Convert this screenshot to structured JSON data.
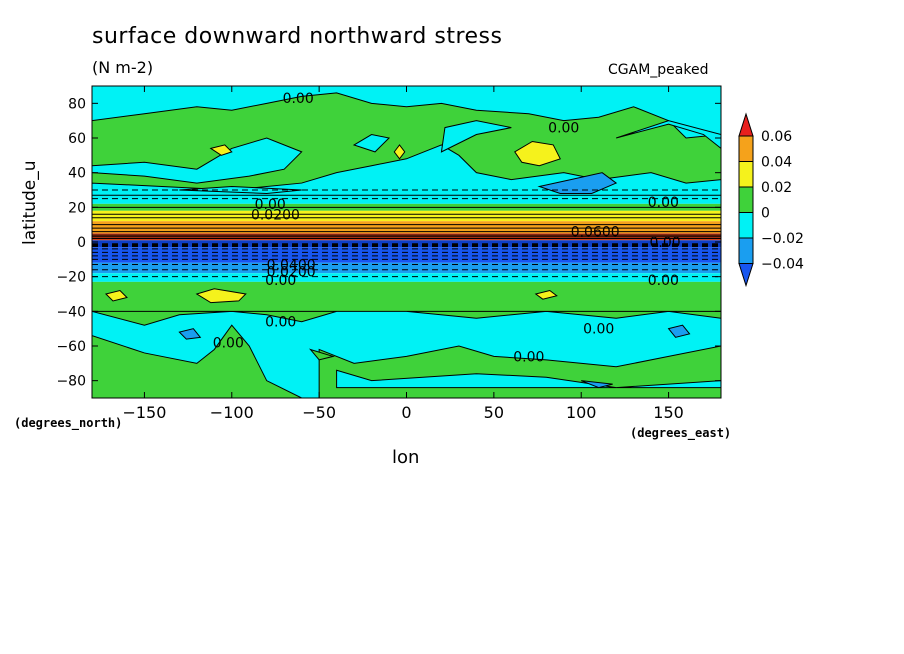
{
  "chart_data": {
    "type": "heatmap",
    "title": "surface downward northward stress",
    "units": "(N m-2)",
    "run_label": "CGAM_peaked",
    "xlabel": "lon",
    "ylabel": "latitude_u",
    "x_units": "(degrees_east)",
    "y_units": "(degrees_north)",
    "xlim": [
      -180,
      180
    ],
    "ylim": [
      -90,
      90
    ],
    "x_ticks": [
      -150,
      -100,
      -50,
      0,
      50,
      100,
      150
    ],
    "y_ticks": [
      80,
      60,
      40,
      20,
      0,
      -20,
      -40,
      -60,
      -80
    ],
    "colorbar": {
      "levels": [
        0.06,
        0.04,
        0.02,
        0,
        -0.02,
        -0.04
      ],
      "labels": [
        "0.06",
        "0.04",
        "0.02",
        "0",
        "−0.02",
        "−0.04"
      ],
      "colors": [
        "#e8201e",
        "#f5a21b",
        "#f5f21c",
        "#3fd23a",
        "#00f2f5",
        "#1a9ef0",
        "#1756f0"
      ]
    },
    "contour_labels": [
      {
        "text": "0.00",
        "lon": -62,
        "lat": 83
      },
      {
        "text": "0.00",
        "lon": 90,
        "lat": 66
      },
      {
        "text": "0.00",
        "lon": 147,
        "lat": 23
      },
      {
        "text": "0.00",
        "lon": 147,
        "lat": -22
      },
      {
        "text": "0.00",
        "lon": -72,
        "lat": -22
      },
      {
        "text": "0.00",
        "lon": -72,
        "lat": -46
      },
      {
        "text": "0.00",
        "lon": 110,
        "lat": -50
      },
      {
        "text": "0.00",
        "lon": 70,
        "lat": -66
      },
      {
        "text": "0.00",
        "lon": -102,
        "lat": -58
      },
      {
        "text": "0.0600",
        "lon": 108,
        "lat": 6
      },
      {
        "text": "0.00",
        "lon": 148,
        "lat": 0
      },
      {
        "text": "0.0200",
        "lon": -75,
        "lat": 16
      },
      {
        "text": "0.00",
        "lon": -78,
        "lat": 22
      },
      {
        "text": "0.0400",
        "lon": -66,
        "lat": -13
      },
      {
        "text": "0.0200",
        "lon": -66,
        "lat": -17
      }
    ],
    "bands": [
      {
        "lat_from": 90,
        "lat_to": 27,
        "fill": "green_cyan_mix"
      },
      {
        "lat_from": 27,
        "lat_to": 22,
        "fill": "cyan"
      },
      {
        "lat_from": 22,
        "lat_to": 18,
        "fill": "green"
      },
      {
        "lat_from": 18,
        "lat_to": 12,
        "fill": "yellow"
      },
      {
        "lat_from": 12,
        "lat_to": 5,
        "fill": "orange"
      },
      {
        "lat_from": 5,
        "lat_to": 1,
        "fill": "red_black"
      },
      {
        "lat_from": 1,
        "lat_to": -3,
        "fill": "blue_dark"
      },
      {
        "lat_from": -3,
        "lat_to": -12,
        "fill": "blue"
      },
      {
        "lat_from": -12,
        "lat_to": -18,
        "fill": "mid_blue"
      },
      {
        "lat_from": -18,
        "lat_to": -23,
        "fill": "cyan"
      },
      {
        "lat_from": -23,
        "lat_to": -40,
        "fill": "green"
      },
      {
        "lat_from": -40,
        "lat_to": -90,
        "fill": "cyan_green_mix"
      }
    ]
  }
}
